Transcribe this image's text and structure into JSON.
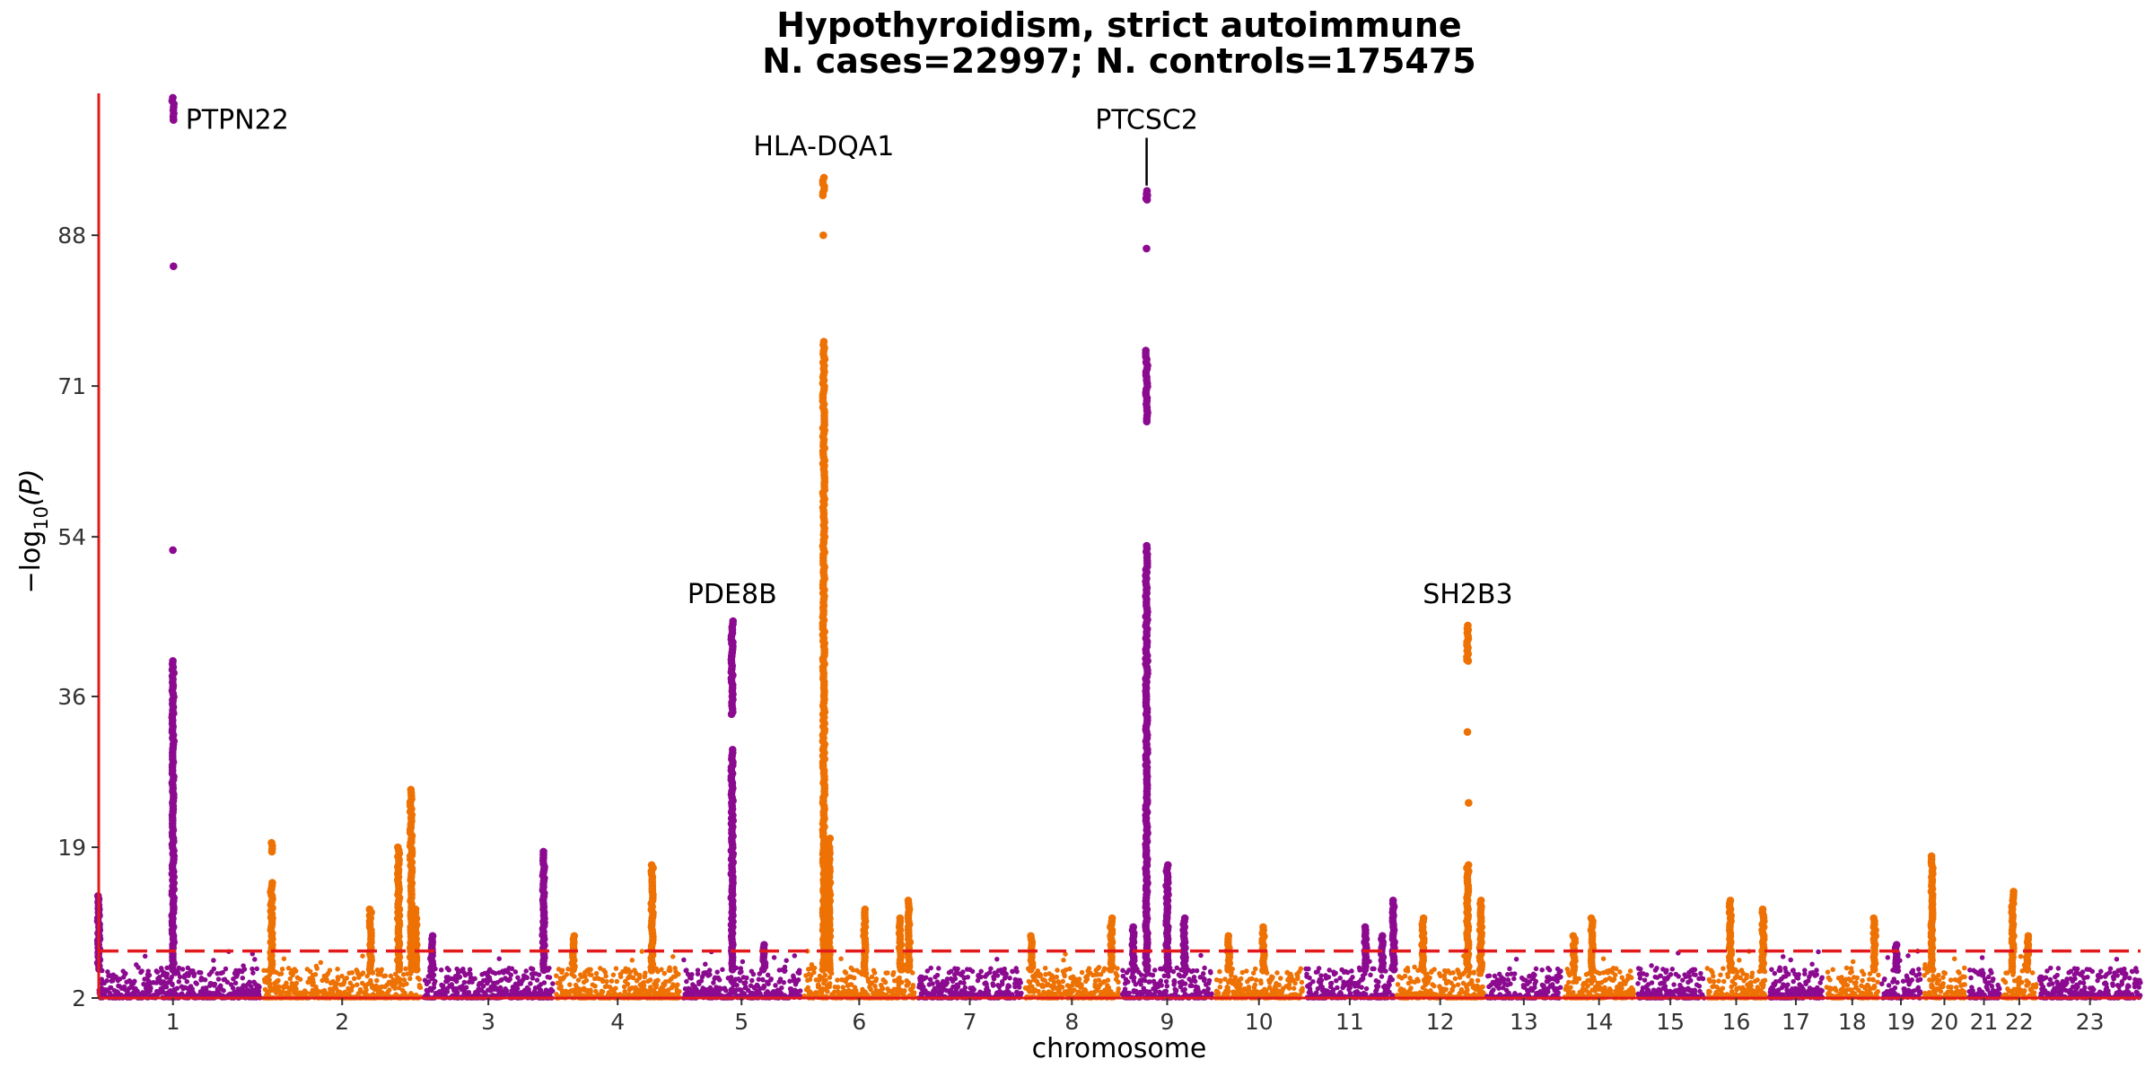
{
  "chart_data": {
    "type": "scatter",
    "subtype": "manhattan",
    "title": "Hypothyroidism, strict autoimmune",
    "subtitle": "N. cases=22997; N. controls=175475",
    "xlabel": "chromosome",
    "ylabel_prefix": "−log",
    "ylabel_sub": "10",
    "ylabel_suffix": "(P)",
    "ylim": [
      2,
      104
    ],
    "yticks": [
      "2",
      "19",
      "36",
      "54",
      "71",
      "88"
    ],
    "ytick_values": [
      2,
      19,
      36,
      54,
      71,
      88
    ],
    "threshold": 7.3,
    "colors": {
      "odd": "#8B0A8F",
      "even": "#EE7103",
      "axis": "#E31A1C",
      "threshold": "#E31A1C"
    },
    "chromosomes": [
      {
        "label": "1",
        "size": 249
      },
      {
        "label": "2",
        "size": 242
      },
      {
        "label": "3",
        "size": 198
      },
      {
        "label": "4",
        "size": 190
      },
      {
        "label": "5",
        "size": 181
      },
      {
        "label": "6",
        "size": 171
      },
      {
        "label": "7",
        "size": 159
      },
      {
        "label": "8",
        "size": 145
      },
      {
        "label": "9",
        "size": 138
      },
      {
        "label": "10",
        "size": 134
      },
      {
        "label": "11",
        "size": 135
      },
      {
        "label": "12",
        "size": 133
      },
      {
        "label": "13",
        "size": 114
      },
      {
        "label": "14",
        "size": 107
      },
      {
        "label": "15",
        "size": 102
      },
      {
        "label": "16",
        "size": 90
      },
      {
        "label": "17",
        "size": 83
      },
      {
        "label": "18",
        "size": 80
      },
      {
        "label": "19",
        "size": 59
      },
      {
        "label": "20",
        "size": 64
      },
      {
        "label": "21",
        "size": 47
      },
      {
        "label": "22",
        "size": 51
      },
      {
        "label": "23",
        "size": 156
      }
    ],
    "peaks": [
      {
        "chr": "1",
        "pos": 0.0,
        "ys": [
          13.5,
          12.8,
          12,
          11,
          10,
          9,
          8.5,
          8,
          7.5,
          7
        ]
      },
      {
        "chr": "1",
        "pos": 0.46,
        "ys": [
          103.5,
          101,
          84.5,
          52.5,
          40,
          39,
          37,
          35.5,
          34,
          32,
          30,
          28,
          26,
          24,
          22,
          20,
          18,
          16,
          14,
          12,
          10,
          9,
          8
        ]
      },
      {
        "chr": "2",
        "pos": 0.05,
        "ys": [
          19.5,
          18.5,
          15,
          13.5,
          12.5,
          11,
          10,
          9,
          8,
          7.5
        ]
      },
      {
        "chr": "2",
        "pos": 0.68,
        "ys": [
          12,
          11,
          10,
          9,
          8
        ]
      },
      {
        "chr": "2",
        "pos": 0.86,
        "ys": [
          19,
          17.5,
          16,
          14,
          12,
          10,
          8
        ]
      },
      {
        "chr": "2",
        "pos": 0.94,
        "ys": [
          25.5,
          24,
          23,
          21,
          19.5,
          18,
          16,
          14,
          12,
          10,
          8
        ]
      },
      {
        "chr": "2",
        "pos": 0.97,
        "ys": [
          12,
          10,
          9,
          8
        ]
      },
      {
        "chr": "3",
        "pos": 0.06,
        "ys": [
          9,
          8,
          7.5
        ]
      },
      {
        "chr": "3",
        "pos": 0.93,
        "ys": [
          18.5,
          17.5,
          16.5,
          15.5,
          14.5,
          13,
          12,
          10.5,
          9
        ]
      },
      {
        "chr": "4",
        "pos": 0.14,
        "ys": [
          9,
          8
        ]
      },
      {
        "chr": "4",
        "pos": 0.78,
        "ys": [
          17,
          16,
          15,
          14,
          13,
          11,
          10
        ]
      },
      {
        "chr": "5",
        "pos": 0.42,
        "ys": [
          44.5,
          43.5,
          42,
          40.5,
          38,
          36,
          34,
          30,
          28,
          26,
          24,
          22,
          20,
          18,
          16,
          14,
          12,
          10,
          8
        ]
      },
      {
        "chr": "5",
        "pos": 0.69,
        "ys": [
          8
        ]
      },
      {
        "chr": "6",
        "pos": 0.18,
        "ys": [
          94.5,
          93.5,
          92.5,
          88,
          76,
          74,
          72,
          70,
          68,
          66,
          64,
          62,
          60,
          58,
          56,
          54,
          52,
          50,
          48,
          46,
          44,
          42,
          40,
          38,
          36,
          34,
          32,
          30,
          28,
          26,
          24,
          22,
          20,
          18,
          16,
          14,
          12,
          10,
          8
        ]
      },
      {
        "chr": "6",
        "pos": 0.23,
        "ys": [
          20,
          19,
          18,
          17,
          16,
          15,
          14,
          12,
          10,
          8
        ]
      },
      {
        "chr": "6",
        "pos": 0.55,
        "ys": [
          12,
          11,
          10,
          9,
          8
        ]
      },
      {
        "chr": "6",
        "pos": 0.87,
        "ys": [
          11,
          10,
          9,
          8
        ]
      },
      {
        "chr": "6",
        "pos": 0.95,
        "ys": [
          13,
          12,
          11,
          10,
          9,
          8
        ]
      },
      {
        "chr": "8",
        "pos": 0.07,
        "ys": [
          9,
          8
        ]
      },
      {
        "chr": "8",
        "pos": 0.92,
        "ys": [
          11,
          10,
          9,
          8
        ]
      },
      {
        "chr": "9",
        "pos": 0.12,
        "ys": [
          10,
          9,
          8
        ]
      },
      {
        "chr": "9",
        "pos": 0.27,
        "ys": [
          93,
          92.5,
          92,
          86.5,
          75,
          74,
          72,
          70,
          68,
          67,
          53,
          52,
          51,
          50,
          48,
          45,
          42,
          40,
          38,
          36,
          34,
          32,
          30,
          28,
          26,
          24,
          22,
          20,
          18,
          16,
          14,
          12,
          10,
          8
        ]
      },
      {
        "chr": "9",
        "pos": 0.5,
        "ys": [
          17,
          16,
          15,
          14,
          13,
          12,
          11,
          10,
          9,
          8
        ]
      },
      {
        "chr": "9",
        "pos": 0.69,
        "ys": [
          11,
          10,
          9,
          8
        ]
      },
      {
        "chr": "10",
        "pos": 0.15,
        "ys": [
          9,
          8
        ]
      },
      {
        "chr": "10",
        "pos": 0.55,
        "ys": [
          10
        ]
      },
      {
        "chr": "11",
        "pos": 0.68,
        "ys": [
          10,
          9,
          8
        ]
      },
      {
        "chr": "11",
        "pos": 0.87,
        "ys": [
          9,
          8
        ]
      },
      {
        "chr": "11",
        "pos": 1.0,
        "ys": [
          13,
          12,
          11,
          10,
          9,
          8
        ]
      },
      {
        "chr": "12",
        "pos": 0.3,
        "ys": [
          11,
          10,
          9,
          8
        ]
      },
      {
        "chr": "12",
        "pos": 0.82,
        "ys": [
          44,
          43.5,
          42.5,
          41.5,
          40,
          32,
          24,
          17,
          16,
          15,
          14,
          13,
          12,
          11,
          10,
          9,
          8
        ]
      },
      {
        "chr": "12",
        "pos": 0.97,
        "ys": [
          13,
          12,
          11,
          10,
          9,
          8
        ]
      },
      {
        "chr": "14",
        "pos": 0.14,
        "ys": [
          9
        ]
      },
      {
        "chr": "14",
        "pos": 0.4,
        "ys": [
          11,
          10,
          9,
          8
        ]
      },
      {
        "chr": "16",
        "pos": 0.4,
        "ys": [
          13,
          12,
          11,
          10,
          9,
          8
        ]
      },
      {
        "chr": "16",
        "pos": 0.96,
        "ys": [
          12,
          11,
          10,
          9,
          8
        ]
      },
      {
        "chr": "18",
        "pos": 0.93,
        "ys": [
          11,
          10,
          9,
          8
        ]
      },
      {
        "chr": "19",
        "pos": 0.38,
        "ys": [
          8
        ]
      },
      {
        "chr": "20",
        "pos": 0.2,
        "ys": [
          18,
          17,
          16,
          15,
          14,
          12,
          10,
          8
        ]
      },
      {
        "chr": "22",
        "pos": 0.3,
        "ys": [
          14,
          13,
          12,
          11,
          10,
          9,
          8
        ]
      },
      {
        "chr": "22",
        "pos": 0.75,
        "ys": [
          9,
          8
        ]
      }
    ],
    "gene_labels": [
      {
        "text": "PTPN22",
        "chr": "1",
        "pos": 0.46,
        "y": 101,
        "anchor": "start",
        "dx": 14,
        "dy": 10
      },
      {
        "text": "HLA-DQA1",
        "chr": "6",
        "pos": 0.18,
        "y": 97,
        "anchor": "middle",
        "dx": 0,
        "dy": 0
      },
      {
        "text": "PTCSC2",
        "chr": "9",
        "pos": 0.27,
        "y": 100,
        "anchor": "middle",
        "dx": 0,
        "dy": 0,
        "leader": true
      },
      {
        "text": "PDE8B",
        "chr": "5",
        "pos": 0.42,
        "y": 46.5,
        "anchor": "middle",
        "dx": 0,
        "dy": 0
      },
      {
        "text": "SH2B3",
        "chr": "12",
        "pos": 0.82,
        "y": 46.5,
        "anchor": "middle",
        "dx": 0,
        "dy": 0
      }
    ]
  }
}
